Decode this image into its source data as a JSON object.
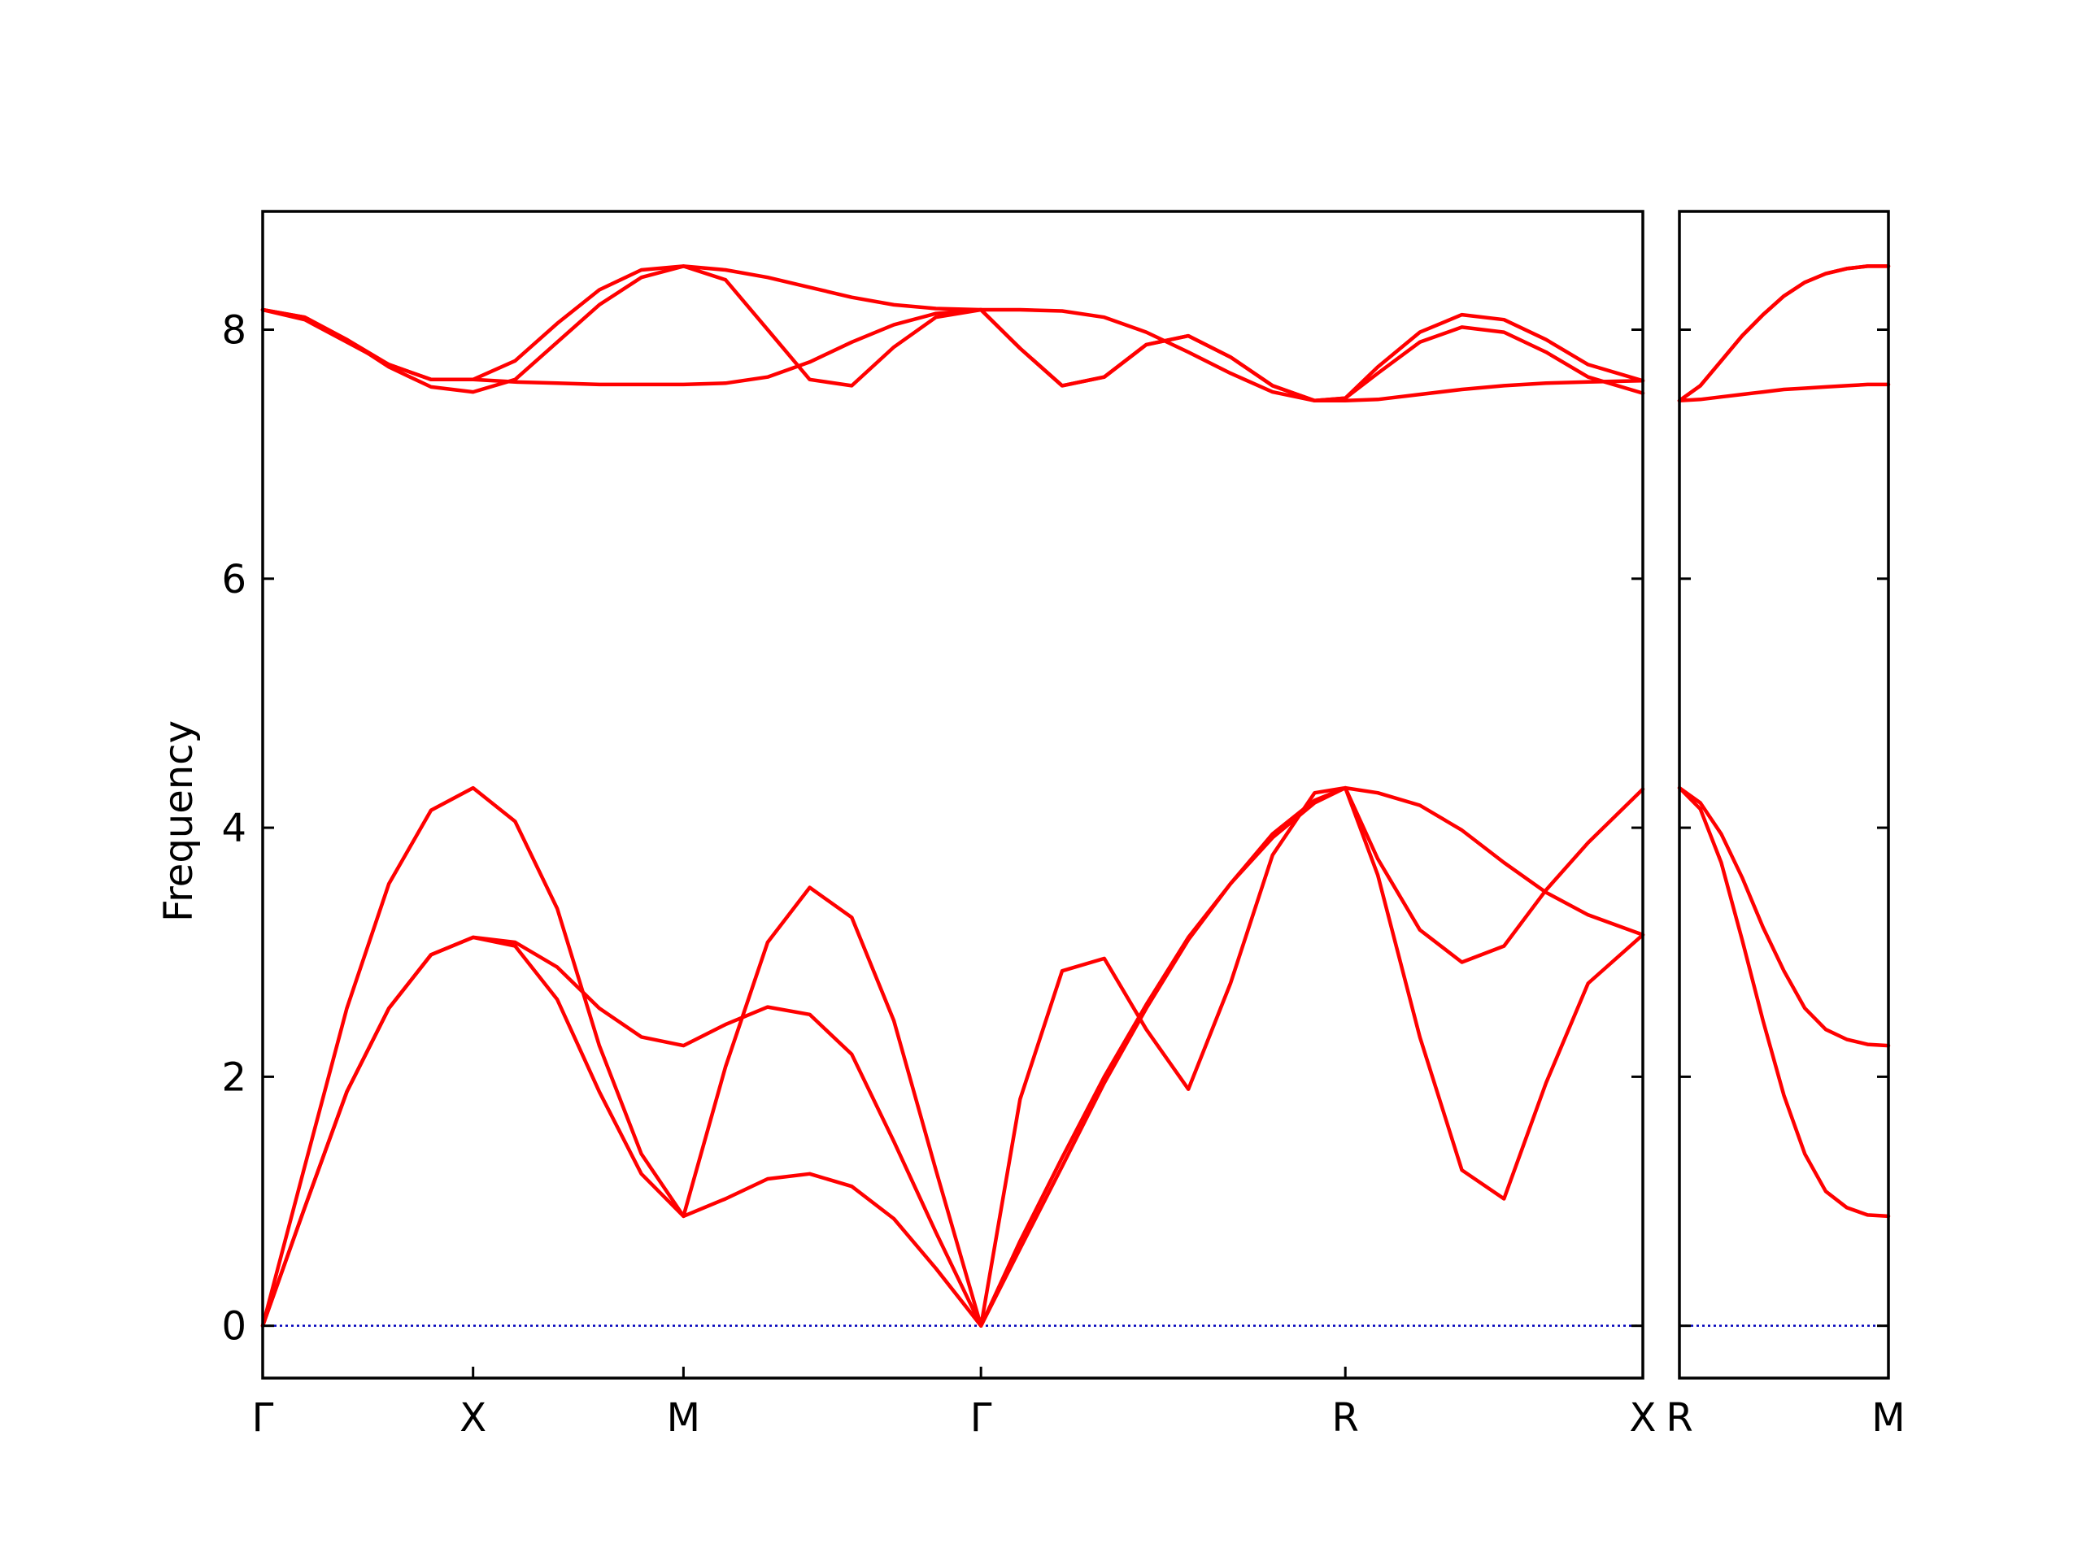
{
  "chart_data": {
    "type": "line",
    "ylabel": "Frequency",
    "ylim": [
      -0.42,
      8.95
    ],
    "yticks": [
      0,
      2,
      4,
      6,
      8
    ],
    "line_color": "#ff0000",
    "zero_line_color": "#0000bb",
    "panels": [
      {
        "xticks": [
          {
            "label": "Γ",
            "x": 0
          },
          {
            "label": "X",
            "x": 0.5
          },
          {
            "label": "M",
            "x": 1.0
          },
          {
            "label": "Γ",
            "x": 1.707
          },
          {
            "label": "R",
            "x": 2.573
          },
          {
            "label": "X",
            "x": 3.28
          }
        ],
        "xlim": [
          0,
          3.28
        ],
        "series": [
          {
            "x": [
              0,
              0.1,
              0.2,
              0.3,
              0.4,
              0.5,
              0.6,
              0.7,
              0.8,
              0.9,
              1.0,
              1.1,
              1.2,
              1.3,
              1.4,
              1.5,
              1.6,
              1.707,
              1.8,
              1.9,
              2.0,
              2.1,
              2.2,
              2.3,
              2.4,
              2.5,
              2.573,
              2.65,
              2.75,
              2.85,
              2.95,
              3.05,
              3.15,
              3.28
            ],
            "y": [
              0,
              1.28,
              2.55,
              3.55,
              4.14,
              4.32,
              4.05,
              3.35,
              2.25,
              1.38,
              0.88,
              1.02,
              1.18,
              1.22,
              1.12,
              0.86,
              0.46,
              0,
              0.68,
              1.35,
              2.0,
              2.58,
              3.12,
              3.55,
              3.95,
              4.22,
              4.32,
              3.62,
              2.32,
              1.25,
              1.02,
              1.95,
              2.75,
              3.14
            ]
          },
          {
            "x": [
              0,
              0.1,
              0.2,
              0.3,
              0.4,
              0.5,
              0.6,
              0.7,
              0.8,
              0.9,
              1.0,
              1.1,
              1.2,
              1.3,
              1.4,
              1.5,
              1.6,
              1.707,
              1.8,
              1.9,
              2.0,
              2.1,
              2.2,
              2.3,
              2.4,
              2.5,
              2.573,
              2.65,
              2.75,
              2.85,
              2.95,
              3.05,
              3.15,
              3.28
            ],
            "y": [
              0,
              0.95,
              1.88,
              2.55,
              2.98,
              3.12,
              3.05,
              2.62,
              1.88,
              1.22,
              0.88,
              2.08,
              3.08,
              3.52,
              3.28,
              2.45,
              1.25,
              0,
              1.82,
              2.85,
              2.95,
              2.38,
              1.9,
              2.75,
              3.78,
              4.28,
              4.32,
              3.75,
              3.18,
              2.92,
              3.05,
              3.5,
              3.88,
              4.31
            ]
          },
          {
            "x": [
              0,
              0.1,
              0.2,
              0.3,
              0.4,
              0.5,
              0.6,
              0.7,
              0.8,
              0.9,
              1.0,
              1.1,
              1.2,
              1.3,
              1.4,
              1.5,
              1.6,
              1.707,
              1.8,
              1.9,
              2.0,
              2.1,
              2.2,
              2.3,
              2.4,
              2.5,
              2.573,
              2.65,
              2.75,
              2.85,
              2.95,
              3.05,
              3.15,
              3.28
            ],
            "y": [
              0,
              0.95,
              1.88,
              2.55,
              2.98,
              3.12,
              3.08,
              2.88,
              2.55,
              2.32,
              2.25,
              2.42,
              2.56,
              2.5,
              2.18,
              1.48,
              0.75,
              0,
              0.62,
              1.28,
              1.95,
              2.55,
              3.1,
              3.55,
              3.92,
              4.2,
              4.32,
              4.28,
              4.18,
              3.98,
              3.72,
              3.48,
              3.3,
              3.14
            ]
          },
          {
            "x": [
              0,
              0.1,
              0.2,
              0.3,
              0.4,
              0.5,
              0.6,
              0.7,
              0.8,
              0.9,
              1.0,
              1.1,
              1.2,
              1.3,
              1.4,
              1.5,
              1.6,
              1.707,
              1.8,
              1.9,
              2.0,
              2.1,
              2.2,
              2.3,
              2.4,
              2.5,
              2.573,
              2.65,
              2.75,
              2.85,
              2.95,
              3.05,
              3.15,
              3.28
            ],
            "y": [
              8.16,
              8.08,
              7.9,
              7.72,
              7.6,
              7.6,
              7.58,
              7.57,
              7.56,
              7.56,
              7.56,
              7.57,
              7.62,
              7.74,
              7.9,
              8.04,
              8.13,
              8.16,
              8.16,
              8.15,
              8.1,
              7.98,
              7.82,
              7.65,
              7.5,
              7.43,
              7.43,
              7.44,
              7.48,
              7.52,
              7.55,
              7.57,
              7.58,
              7.59
            ]
          },
          {
            "x": [
              0,
              0.1,
              0.2,
              0.3,
              0.4,
              0.5,
              0.6,
              0.7,
              0.8,
              0.9,
              1.0,
              1.1,
              1.2,
              1.3,
              1.4,
              1.5,
              1.6,
              1.707,
              1.8,
              1.9,
              2.0,
              2.1,
              2.2,
              2.3,
              2.4,
              2.5,
              2.573,
              2.65,
              2.75,
              2.85,
              2.95,
              3.05,
              3.15,
              3.28
            ],
            "y": [
              8.16,
              8.1,
              7.92,
              7.7,
              7.54,
              7.5,
              7.6,
              7.9,
              8.2,
              8.42,
              8.51,
              8.4,
              8.0,
              7.6,
              7.55,
              7.86,
              8.1,
              8.16,
              7.85,
              7.55,
              7.62,
              7.88,
              7.95,
              7.78,
              7.55,
              7.43,
              7.45,
              7.65,
              7.9,
              8.02,
              7.98,
              7.82,
              7.62,
              7.49
            ]
          },
          {
            "x": [
              0,
              0.1,
              0.2,
              0.3,
              0.4,
              0.5,
              0.6,
              0.7,
              0.8,
              0.9,
              1.0,
              1.1,
              1.2,
              1.3,
              1.4,
              1.5,
              1.6,
              1.707,
              1.8,
              1.9,
              2.0,
              2.1,
              2.2,
              2.3,
              2.4,
              2.5,
              2.573,
              2.65,
              2.75,
              2.85,
              2.95,
              3.05,
              3.15,
              3.28
            ],
            "y": [
              8.16,
              8.1,
              7.92,
              7.72,
              7.6,
              7.6,
              7.75,
              8.05,
              8.32,
              8.48,
              8.51,
              8.48,
              8.42,
              8.34,
              8.26,
              8.2,
              8.17,
              8.16,
              7.85,
              7.55,
              7.62,
              7.88,
              7.95,
              7.78,
              7.55,
              7.43,
              7.45,
              7.7,
              7.98,
              8.12,
              8.08,
              7.92,
              7.72,
              7.59
            ]
          }
        ]
      },
      {
        "xticks": [
          {
            "label": "R",
            "x": 0
          },
          {
            "label": "M",
            "x": 0.5
          }
        ],
        "xlim": [
          0,
          0.5
        ],
        "series": [
          {
            "x": [
              0,
              0.05,
              0.1,
              0.15,
              0.2,
              0.25,
              0.3,
              0.35,
              0.4,
              0.45,
              0.5
            ],
            "y": [
              4.32,
              4.15,
              3.72,
              3.1,
              2.45,
              1.85,
              1.38,
              1.08,
              0.95,
              0.89,
              0.88
            ]
          },
          {
            "x": [
              0,
              0.05,
              0.1,
              0.15,
              0.2,
              0.25,
              0.3,
              0.35,
              0.4,
              0.45,
              0.5
            ],
            "y": [
              4.32,
              4.2,
              3.95,
              3.6,
              3.2,
              2.85,
              2.55,
              2.38,
              2.3,
              2.26,
              2.25
            ]
          },
          {
            "x": [
              0,
              0.05,
              0.1,
              0.15,
              0.2,
              0.25,
              0.3,
              0.35,
              0.4,
              0.45,
              0.5
            ],
            "y": [
              7.43,
              7.44,
              7.46,
              7.48,
              7.5,
              7.52,
              7.53,
              7.54,
              7.55,
              7.56,
              7.56
            ]
          },
          {
            "x": [
              0,
              0.05,
              0.1,
              0.15,
              0.2,
              0.25,
              0.3,
              0.35,
              0.4,
              0.45,
              0.5
            ],
            "y": [
              7.43,
              7.55,
              7.75,
              7.95,
              8.12,
              8.27,
              8.38,
              8.45,
              8.49,
              8.51,
              8.51
            ]
          },
          {
            "x": [
              0,
              0.05,
              0.1,
              0.15,
              0.2,
              0.25,
              0.3,
              0.35,
              0.4,
              0.45,
              0.5
            ],
            "y": [
              7.43,
              7.55,
              7.75,
              7.95,
              8.12,
              8.27,
              8.38,
              8.45,
              8.49,
              8.51,
              8.51
            ]
          }
        ]
      }
    ]
  }
}
